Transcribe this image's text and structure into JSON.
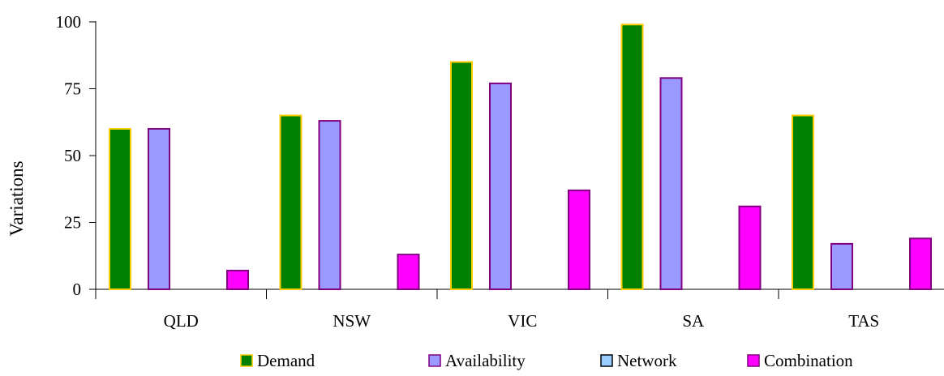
{
  "chart_data": {
    "type": "bar",
    "title": "",
    "xlabel": "",
    "ylabel": "Variations",
    "categories": [
      "QLD",
      "NSW",
      "VIC",
      "SA",
      "TAS"
    ],
    "ylim": [
      0,
      100
    ],
    "yticks": [
      0,
      25,
      50,
      75,
      100
    ],
    "grid": false,
    "legend": "bottom",
    "series": [
      {
        "name": "Demand",
        "values": [
          60,
          65,
          85,
          99,
          65
        ],
        "fill": "#008000",
        "stroke": "#ffcc00"
      },
      {
        "name": "Availability",
        "values": [
          60,
          63,
          77,
          79,
          17
        ],
        "fill": "#9999ff",
        "stroke": "#800080"
      },
      {
        "name": "Network",
        "values": [
          0,
          0,
          0,
          0,
          0
        ],
        "fill": "#99ccff",
        "stroke": "#000000"
      },
      {
        "name": "Combination",
        "values": [
          7,
          13,
          37,
          31,
          19
        ],
        "fill": "#ff00ff",
        "stroke": "#800080"
      }
    ]
  }
}
